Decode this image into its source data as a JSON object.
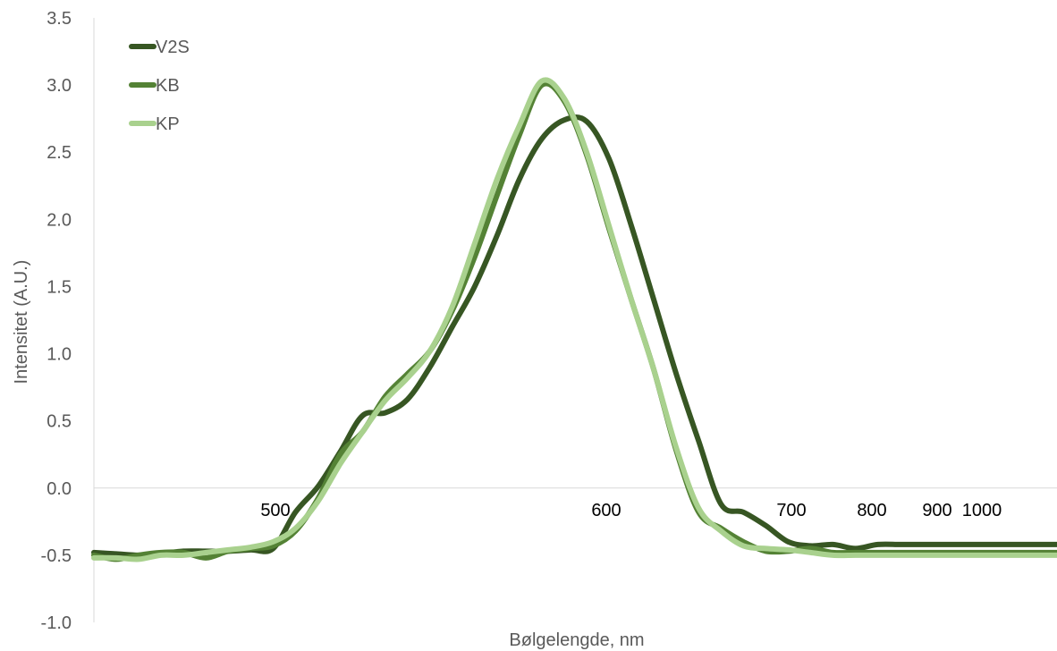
{
  "chart_data": {
    "type": "line",
    "xlabel": "Bølgelengde, nm",
    "ylabel": "Intensitet (A.U.)",
    "ylim": [
      -1.0,
      3.5
    ],
    "yticks": [
      "3.5",
      "3.0",
      "2.5",
      "2.0",
      "1.5",
      "1.0",
      "0.5",
      "0.0",
      "-0.5",
      "-1.0"
    ],
    "xtick_labels": [
      "500",
      "600",
      "700",
      "800",
      "900",
      "1000"
    ],
    "grid": false,
    "legend_position": "top-left",
    "x": [
      0,
      25,
      50,
      75,
      100,
      125,
      150,
      175,
      200,
      225,
      250,
      275,
      300,
      325,
      350,
      375,
      400,
      425,
      450,
      475,
      500,
      525,
      550,
      575,
      600,
      625,
      650,
      675,
      700,
      725,
      750,
      775,
      800,
      825,
      850,
      875,
      900,
      925,
      950,
      975,
      1000,
      1025,
      1050,
      1075
    ],
    "series": [
      {
        "name": "V2S",
        "color": "#375623",
        "values": [
          -0.48,
          -0.49,
          -0.5,
          -0.49,
          -0.47,
          -0.47,
          -0.47,
          -0.46,
          -0.45,
          -0.18,
          0.01,
          0.27,
          0.54,
          0.56,
          0.66,
          0.9,
          1.2,
          1.5,
          1.88,
          2.3,
          2.6,
          2.74,
          2.73,
          2.45,
          1.95,
          1.4,
          0.85,
          0.35,
          -0.12,
          -0.18,
          -0.28,
          -0.4,
          -0.43,
          -0.42,
          -0.45,
          -0.42,
          -0.42,
          -0.42,
          -0.42,
          -0.42,
          -0.42,
          -0.42,
          -0.42,
          -0.42
        ]
      },
      {
        "name": "KB",
        "color": "#548235",
        "values": [
          -0.5,
          -0.53,
          -0.5,
          -0.48,
          -0.48,
          -0.52,
          -0.47,
          -0.45,
          -0.43,
          -0.32,
          -0.08,
          0.25,
          0.42,
          0.68,
          0.85,
          1.02,
          1.32,
          1.72,
          2.18,
          2.63,
          3.0,
          2.88,
          2.48,
          1.93,
          1.4,
          0.88,
          0.28,
          -0.18,
          -0.3,
          -0.4,
          -0.47,
          -0.47,
          -0.45,
          -0.48,
          -0.48,
          -0.48,
          -0.48,
          -0.48,
          -0.48,
          -0.48,
          -0.48,
          -0.48,
          -0.48,
          -0.48
        ]
      },
      {
        "name": "KP",
        "color": "#a9d18e",
        "values": [
          -0.52,
          -0.52,
          -0.53,
          -0.5,
          -0.5,
          -0.48,
          -0.46,
          -0.44,
          -0.4,
          -0.3,
          -0.1,
          0.18,
          0.42,
          0.65,
          0.82,
          1.02,
          1.35,
          1.82,
          2.3,
          2.7,
          3.03,
          2.9,
          2.5,
          1.95,
          1.4,
          0.88,
          0.3,
          -0.15,
          -0.32,
          -0.43,
          -0.45,
          -0.46,
          -0.48,
          -0.5,
          -0.5,
          -0.5,
          -0.5,
          -0.5,
          -0.5,
          -0.5,
          -0.5,
          -0.5,
          -0.5,
          -0.5
        ]
      }
    ]
  }
}
